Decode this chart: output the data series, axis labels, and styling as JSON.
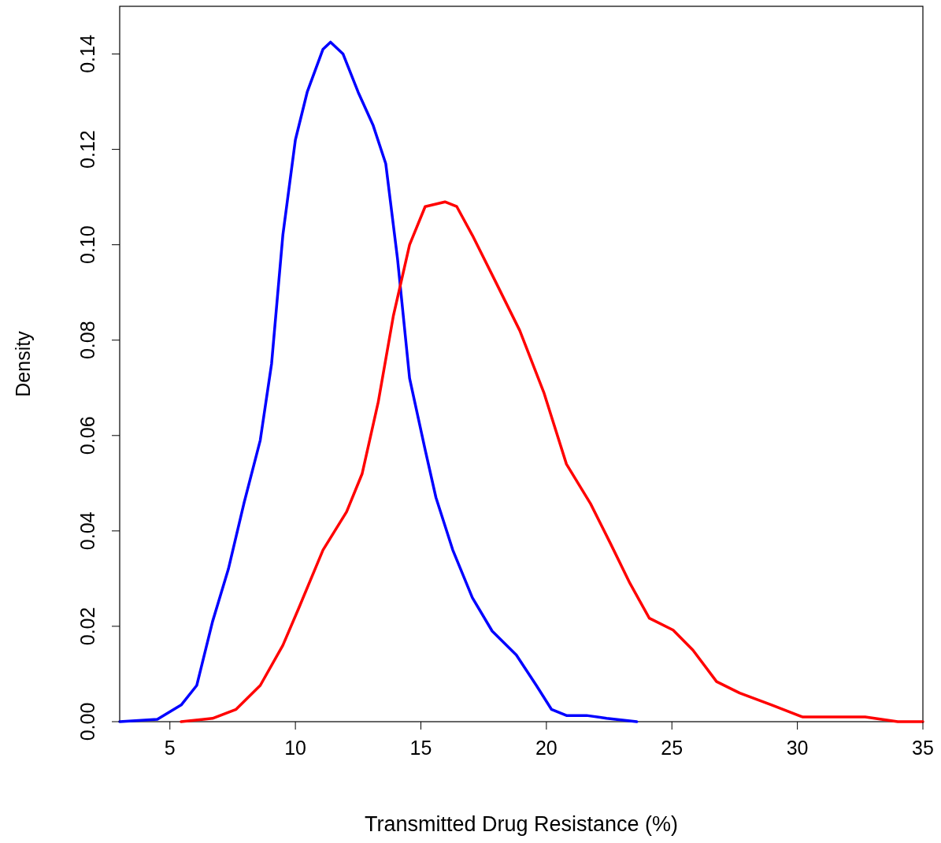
{
  "chart_data": {
    "type": "line",
    "xlabel": "Transmitted Drug Resistance (%)",
    "ylabel": "Density",
    "xlim": [
      3,
      35
    ],
    "ylim": [
      0,
      0.15
    ],
    "xticks": [
      5,
      10,
      15,
      20,
      25,
      30,
      35
    ],
    "yticks": [
      {
        "value": 0,
        "label": "0.00"
      },
      {
        "value": 0.02,
        "label": "0.02"
      },
      {
        "value": 0.04,
        "label": "0.04"
      },
      {
        "value": 0.06,
        "label": "0.06"
      },
      {
        "value": 0.08,
        "label": "0.08"
      },
      {
        "value": 0.1,
        "label": "0.10"
      },
      {
        "value": 0.12,
        "label": "0.12"
      },
      {
        "value": 0.14,
        "label": "0.14"
      }
    ],
    "grid": false,
    "marker": "none",
    "line_style": "solid",
    "series": [
      {
        "color": "#0000ff",
        "x": [
          3,
          4.5,
          5.45,
          6.07,
          6.7,
          7.33,
          7.96,
          8.6,
          9.05,
          9.5,
          10,
          10.47,
          11.1,
          11.4,
          11.9,
          12.5,
          13.1,
          13.6,
          14.07,
          14.55,
          15.17,
          15.6,
          16.27,
          17.05,
          17.84,
          18.8,
          19.6,
          20.2,
          20.8,
          21.6,
          22.4,
          23.6
        ],
        "values": [
          0,
          0.0005,
          0.0035,
          0.0076,
          0.021,
          0.032,
          0.046,
          0.059,
          0.075,
          0.102,
          0.122,
          0.132,
          0.141,
          0.1425,
          0.14,
          0.132,
          0.125,
          0.117,
          0.097,
          0.072,
          0.057,
          0.047,
          0.036,
          0.026,
          0.019,
          0.014,
          0.0076,
          0.0026,
          0.0013,
          0.0013,
          0.0007,
          0
        ]
      },
      {
        "color": "#ff0000",
        "x": [
          5.45,
          6.7,
          7.64,
          8.6,
          9.5,
          10.15,
          11.1,
          12.04,
          12.66,
          13.3,
          13.9,
          14.55,
          15.17,
          15.96,
          16.43,
          17.05,
          18,
          18.94,
          19.9,
          20.8,
          21.76,
          22.55,
          23.33,
          24.1,
          25.05,
          25.84,
          26.78,
          27.7,
          28.98,
          30.2,
          31.5,
          32.7,
          34,
          35
        ],
        "values": [
          0,
          0.0007,
          0.0026,
          0.0076,
          0.016,
          0.024,
          0.036,
          0.044,
          0.052,
          0.067,
          0.085,
          0.1,
          0.108,
          0.109,
          0.108,
          0.102,
          0.092,
          0.082,
          0.069,
          0.054,
          0.0457,
          0.0374,
          0.029,
          0.0217,
          0.0192,
          0.015,
          0.0084,
          0.006,
          0.0035,
          0.001,
          0.001,
          0.001,
          0,
          0
        ]
      }
    ]
  }
}
